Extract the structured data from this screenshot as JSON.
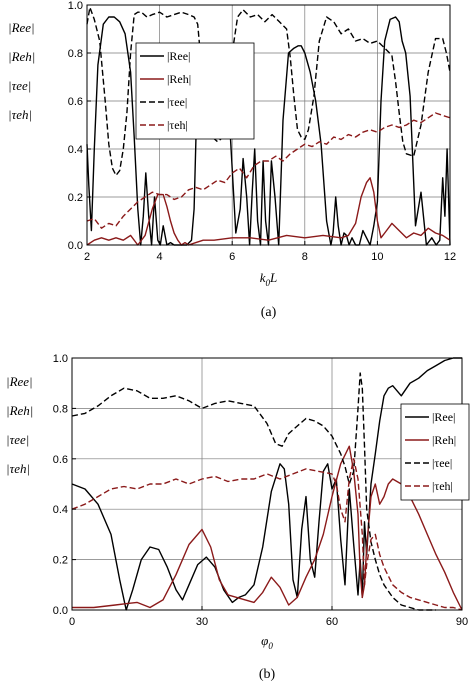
{
  "figure": {
    "panels": [
      {
        "caption": "(a)",
        "xlabel": "k0L",
        "xlabel_main": "k",
        "xlabel_sub": "0",
        "xlabel_rest": "L",
        "ylabel_lines": [
          "|Ree|",
          "|Reh|",
          "|τee|",
          "|τeh|"
        ]
      },
      {
        "caption": "(b)",
        "xlabel": "φ0",
        "xlabel_main": "φ",
        "xlabel_sub": "0",
        "xlabel_rest": "",
        "ylabel_lines": [
          "|Ree|",
          "|Reh|",
          "|τee|",
          "|τeh|"
        ]
      }
    ]
  },
  "chart_data": [
    {
      "type": "line",
      "caption": "(a)",
      "xlabel": "k0L",
      "ylabel": "|Ree| |Reh| |τee| |τeh|",
      "xlim": [
        2,
        12
      ],
      "ylim": [
        0,
        1.0
      ],
      "xticks": [
        2,
        4,
        6,
        8,
        10,
        12
      ],
      "yticks": [
        0.0,
        0.2,
        0.4,
        0.6,
        0.8,
        1.0
      ],
      "grid": true,
      "legend_position": "upper-middle",
      "series": [
        {
          "name": "|Ree|",
          "color": "#000000",
          "dash": "solid",
          "x": [
            2.0,
            2.05,
            2.12,
            2.2,
            2.3,
            2.45,
            2.6,
            2.75,
            2.9,
            3.05,
            3.2,
            3.3,
            3.4,
            3.48,
            3.55,
            3.62,
            3.7,
            3.78,
            3.86,
            3.95,
            4.02,
            4.1,
            4.2,
            4.3,
            4.4,
            4.5,
            4.62,
            4.75,
            4.88,
            4.95,
            5.02,
            5.12,
            5.3,
            5.5,
            5.7,
            5.82,
            5.95,
            6.1,
            6.22,
            6.3,
            6.4,
            6.48,
            6.55,
            6.62,
            6.7,
            6.78,
            6.85,
            6.92,
            7.0,
            7.08,
            7.18,
            7.28,
            7.4,
            7.55,
            7.7,
            7.82,
            7.9,
            8.0,
            8.15,
            8.3,
            8.45,
            8.6,
            8.72,
            8.78,
            8.85,
            8.92,
            9.0,
            9.08,
            9.15,
            9.22,
            9.3,
            9.4,
            9.5,
            9.6,
            9.7,
            9.8,
            9.9,
            10.0,
            10.1,
            10.2,
            10.35,
            10.5,
            10.6,
            10.68,
            10.78,
            10.9,
            11.05,
            11.2,
            11.35,
            11.5,
            11.62,
            11.72,
            11.8,
            11.86,
            11.92,
            12.0
          ],
          "y": [
            0.42,
            0.25,
            0.06,
            0.4,
            0.75,
            0.92,
            0.95,
            0.95,
            0.93,
            0.88,
            0.72,
            0.45,
            0.15,
            0.0,
            0.12,
            0.3,
            0.12,
            0.0,
            0.2,
            0.02,
            0.0,
            0.08,
            0.0,
            0.01,
            0.0,
            0.0,
            0.0,
            0.0,
            0.02,
            0.15,
            0.55,
            0.72,
            0.8,
            0.83,
            0.82,
            0.72,
            0.45,
            0.05,
            0.15,
            0.36,
            0.2,
            0.0,
            0.22,
            0.4,
            0.1,
            0.0,
            0.35,
            0.1,
            0.0,
            0.35,
            0.2,
            0.0,
            0.52,
            0.8,
            0.82,
            0.83,
            0.83,
            0.8,
            0.72,
            0.6,
            0.42,
            0.1,
            0.0,
            0.05,
            0.2,
            0.08,
            0.0,
            0.05,
            0.04,
            0.0,
            0.03,
            0.0,
            0.0,
            0.06,
            0.03,
            0.0,
            0.08,
            0.18,
            0.6,
            0.85,
            0.94,
            0.95,
            0.93,
            0.85,
            0.8,
            0.62,
            0.08,
            0.22,
            0.0,
            0.03,
            0.0,
            0.02,
            0.28,
            0.12,
            0.4,
            0.0
          ]
        },
        {
          "name": "|Reh|",
          "color": "#8b1a1a",
          "dash": "solid",
          "x": [
            2.0,
            2.2,
            2.4,
            2.6,
            2.8,
            3.0,
            3.2,
            3.4,
            3.6,
            3.8,
            3.95,
            4.1,
            4.2,
            4.3,
            4.4,
            4.5,
            4.6,
            4.7,
            4.8,
            5.0,
            5.2,
            5.5,
            6.0,
            6.5,
            7.0,
            7.5,
            8.0,
            8.5,
            9.0,
            9.2,
            9.4,
            9.55,
            9.7,
            9.8,
            9.9,
            10.0,
            10.1,
            10.2,
            10.4,
            10.6,
            10.8,
            11.0,
            11.2,
            11.4,
            11.6,
            11.8,
            12.0
          ],
          "y": [
            0.0,
            0.02,
            0.03,
            0.02,
            0.03,
            0.02,
            0.04,
            0.0,
            0.04,
            0.15,
            0.21,
            0.21,
            0.16,
            0.1,
            0.05,
            0.02,
            0.0,
            0.01,
            0.0,
            0.01,
            0.02,
            0.02,
            0.03,
            0.03,
            0.02,
            0.04,
            0.03,
            0.04,
            0.03,
            0.04,
            0.09,
            0.2,
            0.26,
            0.28,
            0.22,
            0.1,
            0.03,
            0.05,
            0.09,
            0.06,
            0.03,
            0.05,
            0.04,
            0.07,
            0.05,
            0.04,
            0.02
          ]
        },
        {
          "name": "|τee|",
          "color": "#000000",
          "dash": "dashed",
          "x": [
            2.0,
            2.08,
            2.2,
            2.35,
            2.5,
            2.6,
            2.7,
            2.8,
            2.9,
            3.0,
            3.1,
            3.2,
            3.3,
            3.4,
            3.5,
            3.65,
            3.8,
            4.0,
            4.2,
            4.4,
            4.6,
            4.8,
            4.95,
            5.05,
            5.15,
            5.3,
            5.45,
            5.6,
            5.75,
            5.9,
            6.0,
            6.15,
            6.3,
            6.5,
            6.7,
            6.9,
            7.1,
            7.3,
            7.5,
            7.6,
            7.7,
            7.8,
            7.9,
            8.0,
            8.1,
            8.25,
            8.4,
            8.6,
            8.8,
            9.0,
            9.2,
            9.4,
            9.6,
            9.8,
            10.0,
            10.2,
            10.4,
            10.5,
            10.6,
            10.7,
            10.8,
            11.0,
            11.2,
            11.4,
            11.6,
            11.8,
            11.9,
            12.0
          ],
          "y": [
            0.92,
            0.99,
            0.94,
            0.85,
            0.6,
            0.42,
            0.32,
            0.29,
            0.31,
            0.4,
            0.55,
            0.8,
            0.96,
            0.97,
            0.97,
            0.95,
            0.96,
            0.97,
            0.95,
            0.96,
            0.97,
            0.96,
            0.95,
            0.92,
            0.75,
            0.58,
            0.45,
            0.43,
            0.45,
            0.58,
            0.8,
            0.95,
            0.98,
            0.95,
            0.96,
            0.93,
            0.96,
            0.93,
            0.9,
            0.78,
            0.62,
            0.48,
            0.45,
            0.44,
            0.48,
            0.62,
            0.85,
            0.95,
            0.93,
            0.88,
            0.9,
            0.85,
            0.86,
            0.84,
            0.85,
            0.82,
            0.79,
            0.68,
            0.55,
            0.43,
            0.38,
            0.37,
            0.5,
            0.72,
            0.86,
            0.86,
            0.8,
            0.72
          ]
        },
        {
          "name": "|τeh|",
          "color": "#8b1a1a",
          "dash": "dashed",
          "x": [
            2.0,
            2.2,
            2.4,
            2.6,
            2.8,
            3.0,
            3.2,
            3.4,
            3.6,
            3.8,
            4.0,
            4.2,
            4.4,
            4.6,
            4.8,
            5.0,
            5.2,
            5.4,
            5.6,
            5.8,
            6.0,
            6.2,
            6.4,
            6.6,
            6.8,
            7.0,
            7.2,
            7.4,
            7.6,
            7.8,
            8.0,
            8.2,
            8.4,
            8.6,
            8.8,
            9.0,
            9.2,
            9.4,
            9.6,
            9.8,
            10.0,
            10.2,
            10.4,
            10.6,
            10.8,
            11.0,
            11.2,
            11.4,
            11.6,
            11.8,
            12.0
          ],
          "y": [
            0.1,
            0.11,
            0.07,
            0.09,
            0.08,
            0.12,
            0.15,
            0.18,
            0.2,
            0.22,
            0.21,
            0.21,
            0.19,
            0.2,
            0.23,
            0.24,
            0.23,
            0.25,
            0.27,
            0.26,
            0.3,
            0.32,
            0.28,
            0.33,
            0.35,
            0.35,
            0.37,
            0.35,
            0.38,
            0.4,
            0.42,
            0.41,
            0.43,
            0.42,
            0.45,
            0.44,
            0.46,
            0.45,
            0.47,
            0.48,
            0.47,
            0.49,
            0.5,
            0.49,
            0.5,
            0.52,
            0.51,
            0.53,
            0.55,
            0.54,
            0.53
          ]
        }
      ]
    },
    {
      "type": "line",
      "caption": "(b)",
      "xlabel": "φ0",
      "ylabel": "|Ree| |Reh| |τee| |τeh|",
      "xlim": [
        0,
        90
      ],
      "ylim": [
        0,
        1.0
      ],
      "xticks": [
        0,
        30,
        60,
        90
      ],
      "yticks": [
        0.0,
        0.2,
        0.4,
        0.6,
        0.8,
        1.0
      ],
      "grid": true,
      "legend_position": "right",
      "series": [
        {
          "name": "|Ree|",
          "color": "#000000",
          "dash": "solid",
          "x": [
            0,
            3,
            6,
            9,
            11,
            12.5,
            14,
            16,
            18,
            20,
            22,
            24,
            25.5,
            27,
            29,
            31,
            33,
            35,
            37,
            38.5,
            40,
            42,
            44,
            46,
            48,
            49,
            50,
            51,
            52,
            53,
            54,
            55,
            56,
            57,
            58,
            59,
            60,
            61,
            62,
            63,
            64,
            65,
            66,
            66.5,
            67,
            67.5,
            68,
            69,
            70,
            71,
            72,
            73,
            74,
            76,
            78,
            80,
            82,
            84,
            86,
            88,
            90
          ],
          "y": [
            0.5,
            0.48,
            0.42,
            0.3,
            0.12,
            0.0,
            0.08,
            0.2,
            0.25,
            0.24,
            0.17,
            0.08,
            0.04,
            0.1,
            0.18,
            0.21,
            0.17,
            0.08,
            0.03,
            0.05,
            0.06,
            0.1,
            0.25,
            0.47,
            0.58,
            0.56,
            0.42,
            0.12,
            0.05,
            0.32,
            0.45,
            0.2,
            0.13,
            0.35,
            0.55,
            0.58,
            0.48,
            0.52,
            0.28,
            0.1,
            0.48,
            0.26,
            0.06,
            0.2,
            0.05,
            0.35,
            0.22,
            0.5,
            0.62,
            0.75,
            0.85,
            0.88,
            0.89,
            0.85,
            0.9,
            0.92,
            0.95,
            0.97,
            0.99,
            1.0,
            1.0
          ]
        },
        {
          "name": "|Reh|",
          "color": "#8b1a1a",
          "dash": "solid",
          "x": [
            0,
            5,
            10,
            15,
            18,
            21,
            24,
            27,
            30,
            32,
            34,
            36,
            38,
            40,
            42,
            44,
            46,
            48,
            50,
            52,
            54,
            56,
            58,
            60,
            62,
            64,
            65,
            66,
            66.5,
            67,
            67.5,
            68,
            69,
            70,
            71,
            72,
            73,
            74,
            76,
            78,
            80,
            82,
            84,
            86,
            88,
            90
          ],
          "y": [
            0.01,
            0.01,
            0.02,
            0.03,
            0.01,
            0.04,
            0.14,
            0.26,
            0.32,
            0.25,
            0.12,
            0.06,
            0.05,
            0.04,
            0.03,
            0.07,
            0.13,
            0.09,
            0.02,
            0.05,
            0.13,
            0.2,
            0.3,
            0.45,
            0.58,
            0.65,
            0.55,
            0.38,
            0.15,
            0.05,
            0.1,
            0.25,
            0.45,
            0.5,
            0.42,
            0.45,
            0.5,
            0.52,
            0.5,
            0.45,
            0.38,
            0.3,
            0.22,
            0.15,
            0.07,
            0.0
          ]
        },
        {
          "name": "|τee|",
          "color": "#000000",
          "dash": "dashed",
          "x": [
            0,
            3,
            6,
            9,
            12,
            15,
            18,
            21,
            24,
            27,
            30,
            33,
            36,
            39,
            42,
            45,
            47,
            48.5,
            50,
            52,
            54,
            56,
            58,
            60,
            62,
            63,
            64,
            65,
            66,
            66.5,
            67,
            67.5,
            68,
            69,
            70,
            71,
            72,
            74,
            76,
            78,
            80,
            82,
            84
          ],
          "y": [
            0.77,
            0.78,
            0.81,
            0.85,
            0.88,
            0.87,
            0.84,
            0.84,
            0.85,
            0.83,
            0.8,
            0.82,
            0.83,
            0.82,
            0.81,
            0.74,
            0.66,
            0.65,
            0.7,
            0.73,
            0.76,
            0.75,
            0.73,
            0.69,
            0.62,
            0.57,
            0.5,
            0.55,
            0.8,
            0.94,
            0.88,
            0.65,
            0.4,
            0.27,
            0.2,
            0.14,
            0.1,
            0.05,
            0.02,
            0.01,
            0.0,
            0.0,
            0.0
          ]
        },
        {
          "name": "|τeh|",
          "color": "#8b1a1a",
          "dash": "dashed",
          "x": [
            0,
            3,
            6,
            9,
            12,
            15,
            18,
            21,
            24,
            27,
            30,
            33,
            36,
            39,
            42,
            45,
            48,
            51,
            54,
            57,
            60,
            61,
            62,
            63,
            64,
            65,
            66,
            67,
            67.5,
            68,
            69,
            70,
            71,
            72,
            74,
            76,
            78,
            80,
            82,
            84,
            86,
            88,
            90
          ],
          "y": [
            0.4,
            0.42,
            0.45,
            0.48,
            0.49,
            0.48,
            0.5,
            0.5,
            0.52,
            0.5,
            0.52,
            0.53,
            0.51,
            0.52,
            0.52,
            0.54,
            0.52,
            0.54,
            0.56,
            0.55,
            0.54,
            0.5,
            0.4,
            0.35,
            0.52,
            0.6,
            0.52,
            0.3,
            0.1,
            0.18,
            0.28,
            0.3,
            0.22,
            0.17,
            0.1,
            0.07,
            0.05,
            0.04,
            0.03,
            0.02,
            0.01,
            0.01,
            0.0
          ]
        }
      ]
    }
  ]
}
